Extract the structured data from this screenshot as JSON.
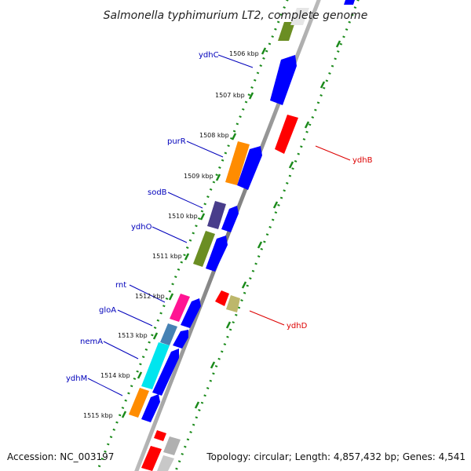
{
  "title": "Salmonella typhimurium LT2, complete genome",
  "footer": {
    "accession": "Accession: NC_003197",
    "topology": "Topology: circular; Length: 4,857,432 bp; Genes: 4,541"
  },
  "colors": {
    "background": "#ffffff",
    "backbone": "#8a8a8a",
    "dotted_track": "#1a8a1a",
    "forward_label": "#0000bb",
    "reverse_label": "#dd0000"
  },
  "kbp_labels": [
    "1506 kbp",
    "1507 kbp",
    "1508 kbp",
    "1509 kbp",
    "1510 kbp",
    "1511 kbp",
    "1512 kbp",
    "1513 kbp",
    "1514 kbp",
    "1515 kbp"
  ],
  "forward_gene_labels": [
    "ydhC",
    "purR",
    "sodB",
    "ydhO",
    "rnt",
    "gloA",
    "nemA",
    "ydhM"
  ],
  "reverse_gene_labels": [
    "ydhB",
    "ydhD"
  ]
}
